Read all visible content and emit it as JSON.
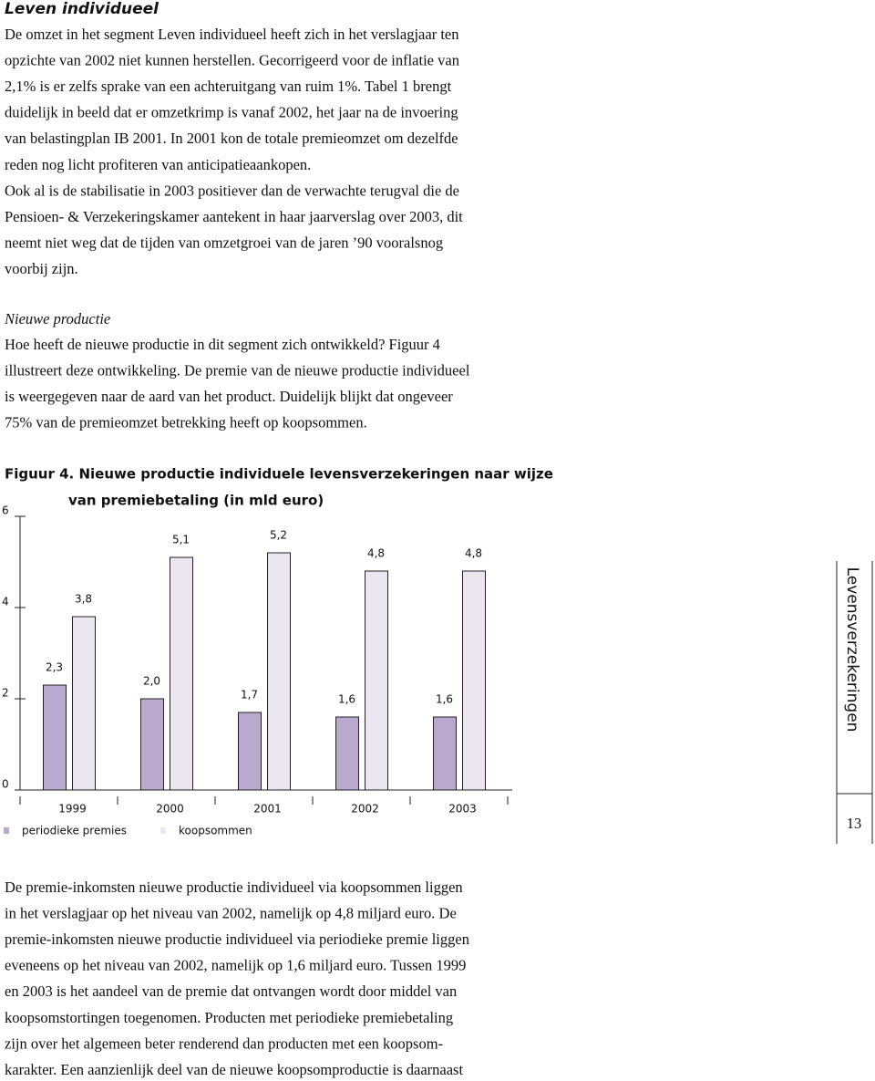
{
  "heading": "Leven individueel",
  "intro": [
    [
      "De omzet in het segment Leven individueel heeft zich in het verslagjaar ten",
      "opzichte van 2002 niet kunnen herstellen. Gecorrigeerd voor de inflatie van",
      "2,1% is er zelfs sprake van een achteruitgang van ruim 1%. Tabel 1 brengt",
      "duidelijk in beeld dat er omzetkrimp is vanaf 2002, het jaar na de invoering",
      "van belastingplan IB 2001. In 2001 kon de totale premieomzet om dezelfde",
      "reden nog licht profiteren van anticipatieaankopen."
    ],
    [
      "Ook al is de stabilisatie in 2003 positiever dan de verwachte terugval die de",
      "Pensioen- & Verzekeringskamer aantekent in haar jaarverslag over 2003, dit",
      "neemt niet weg dat de tijden van omzetgroei van de jaren ’90 vooralsnog",
      "voorbij zijn."
    ]
  ],
  "subheading": "Nieuwe productie",
  "paragraph": [
    "Hoe heeft de nieuwe productie in dit segment zich ontwikkeld? Figuur 4",
    "illustreert deze ontwikkeling. De premie van de nieuwe productie individueel",
    "is weergegeven naar de aard van het product. Duidelijk blijkt dat ongeveer",
    "75% van de premieomzet betrekking heeft op koopsommen."
  ],
  "chart_data": {
    "type": "bar",
    "title": [
      "Figuur 4. Nieuwe productie individuele levensverzekeringen naar wijze",
      "van premiebetaling (in mld euro)"
    ],
    "categories": [
      "1999",
      "2000",
      "2001",
      "2002",
      "2003"
    ],
    "series": [
      {
        "name": "periodieke premies",
        "color": "#b9a9cf",
        "values": [
          2.3,
          2.0,
          1.7,
          1.6,
          1.6
        ],
        "value_labels": [
          "2,3",
          "2,0",
          "1,7",
          "1,6",
          "1,6"
        ]
      },
      {
        "name": "koopsommen",
        "color": "#ece6f1",
        "values": [
          3.8,
          5.1,
          5.2,
          4.8,
          4.8
        ],
        "value_labels": [
          "3,8",
          "5,1",
          "5,2",
          "4,8",
          "4,8"
        ]
      }
    ],
    "ylim": [
      0,
      6
    ],
    "yticks": [
      0,
      2,
      4,
      6
    ]
  },
  "side_label": "Levensverzekeringen",
  "page_number": "13",
  "closing": [
    "De premie-inkomsten nieuwe productie individueel via koopsommen liggen",
    "in het verslagjaar op het niveau van 2002, namelijk op 4,8 miljard euro. De",
    "premie-inkomsten nieuwe productie individueel via periodieke premie liggen",
    "eveneens op het niveau van 2002, namelijk op 1,6 miljard euro. Tussen 1999",
    "en 2003 is het aandeel van de premie dat ontvangen wordt door middel van",
    "koopsomstortingen toegenomen. Producten met periodieke premiebetaling",
    "zijn over het algemeen beter renderend dan producten met een koopsom-",
    "karakter. Een aanzienlijk deel van de nieuwe koopsomproductie is daarnaast"
  ]
}
